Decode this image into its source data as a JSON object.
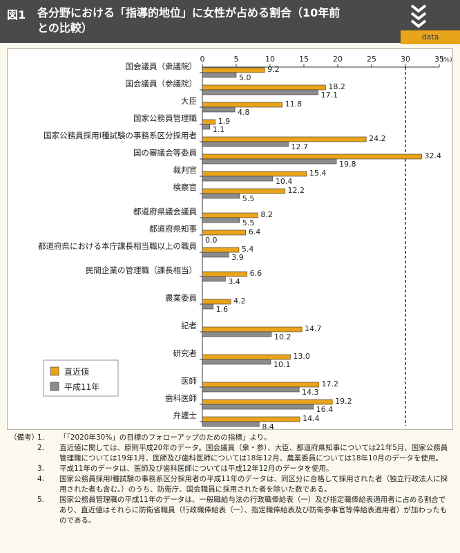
{
  "header": {
    "fig_label": "図1",
    "title": "各分野における「指導的地位」に女性が占める割合（10年前との比較）",
    "data_tag": "data",
    "icon": "triple-chevron-down-icon"
  },
  "chart_data": {
    "type": "bar",
    "orientation": "horizontal",
    "x_ticks": [
      0,
      5,
      10,
      15,
      20,
      25,
      30,
      35
    ],
    "x_unit": "(%)",
    "xlim": [
      0,
      35
    ],
    "reference_line": 30,
    "categories": [
      "国会議員（衆議院）",
      "国会議員（参議院）",
      "大臣",
      "国家公務員管理職",
      "国家公務員採用Ⅰ種試験の事務系区分採用者",
      "国の審議会等委員",
      "裁判官",
      "検察官",
      "都道府県議会議員",
      "都道府県知事",
      "都道府県における本庁課長相当職以上の職員",
      "民間企業の管理職（課長相当）",
      "農業委員",
      "記者",
      "研究者",
      "医師",
      "歯科医師",
      "弁護士"
    ],
    "series": [
      {
        "name": "直近値",
        "color": "#e8a51c",
        "values": [
          9.2,
          18.2,
          11.8,
          1.9,
          24.2,
          32.4,
          15.4,
          12.2,
          8.2,
          6.4,
          5.4,
          6.6,
          4.2,
          14.7,
          13.0,
          17.2,
          19.2,
          14.4
        ],
        "labels": [
          "9.2",
          "18.2",
          "11.8",
          "1.9",
          "24.2",
          "32.4",
          "15.4",
          "12.2",
          "8.2",
          "6.4",
          "5.4",
          "6.6",
          "4.2",
          "14.7",
          "13.0",
          "17.2",
          "19.2",
          "14.4"
        ]
      },
      {
        "name": "平成11年",
        "color": "#8c8c8c",
        "values": [
          5.0,
          17.1,
          4.8,
          1.1,
          12.7,
          19.8,
          10.4,
          5.5,
          5.5,
          0.0,
          3.9,
          3.4,
          1.6,
          10.2,
          10.1,
          14.3,
          16.4,
          8.4
        ],
        "labels": [
          "5.0",
          "17.1",
          "4.8",
          "1.1",
          "12.7",
          "19.8",
          "10.4",
          "5.5",
          "5.5",
          "0.0",
          "3.9",
          "3.4",
          "1.6",
          "10.2",
          "10.1",
          "14.3",
          "16.4",
          "8.4"
        ]
      }
    ],
    "legend_position": "bottom-left"
  },
  "notes": {
    "lead": "（備考）",
    "items": [
      {
        "num": "1.",
        "text": "「「2020年30%」の目標のフォローアップのための指標」より。"
      },
      {
        "num": "2.",
        "text": "直近値に関しては、原則平成20年のデータ。国会議員（衆・参）、大臣、都道府県知事については21年5月、国家公務員管理職については19年1月、医師及び歯科医師については18年12月、農業委員については18年10月のデータを使用。"
      },
      {
        "num": "3.",
        "text": "平成11年のデータは、医師及び歯科医師については平成12年12月のデータを使用。"
      },
      {
        "num": "4.",
        "text": "国家公務員採用Ⅰ種試験の事務系区分採用者の平成11年のデータは、同区分に合格して採用された者（独立行政法人に採用された者も含む。）のうち、防衛庁、国会職員に採用された者を除いた数である。"
      },
      {
        "num": "5.",
        "text": "国家公務員管理職の平成11年のデータは、一般職給与法の行政職俸給表（一）及び指定職俸給表適用者に占める割合であり、直近値はそれらに防衛省職員（行政職俸給表（一）、指定職俸給表及び防衛参事官等俸給表適用者）が加わったものである。"
      }
    ]
  }
}
